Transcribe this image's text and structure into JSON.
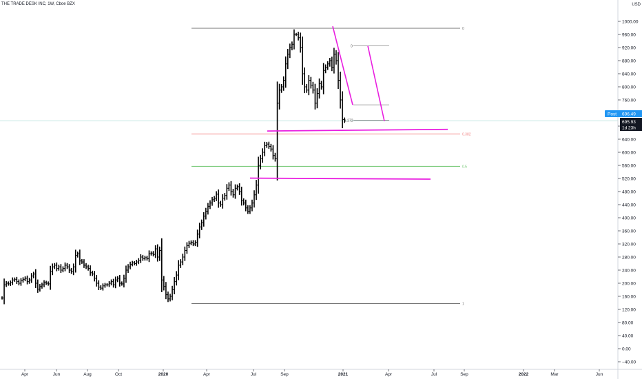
{
  "header": {
    "title": "THE TRADE DESK INC, 1W, Cboe BZX",
    "currency": "USD"
  },
  "price_badges": {
    "post_label": "Post",
    "post_value": "696.49",
    "last_value": "695.93",
    "countdown": "1d 23h"
  },
  "colors": {
    "accent_blue": "#2196f3",
    "trendline_magenta": "#e91ee0",
    "fib_red": "#f28a8a",
    "fib_green": "#6cc46c",
    "bars": "#000000"
  },
  "chart_data": {
    "type": "ohlc",
    "ylim": [
      -40,
      1000
    ],
    "y_ticks": [
      "−40.00",
      "0.00",
      "40.00",
      "80.00",
      "120.00",
      "160.00",
      "200.00",
      "240.00",
      "280.00",
      "320.00",
      "360.00",
      "400.00",
      "440.00",
      "480.00",
      "520.00",
      "560.00",
      "600.00",
      "640.00",
      "680.00",
      "720.00",
      "760.00",
      "800.00",
      "840.00",
      "880.00",
      "920.00",
      "960.00",
      "1000.00"
    ],
    "x_ticks": [
      "Apr",
      "Jun",
      "Aug",
      "Oct",
      "2020",
      "Apr",
      "Jul",
      "Sep",
      "2021",
      "Apr",
      "Jul",
      "Sep",
      "2022",
      "Mar",
      "Jun"
    ],
    "closes": [
      155,
      195,
      200,
      198,
      202,
      210,
      212,
      205,
      200,
      208,
      212,
      215,
      205,
      210,
      222,
      228,
      200,
      182,
      190,
      195,
      202,
      200,
      198,
      235,
      250,
      255,
      245,
      250,
      240,
      245,
      255,
      250,
      240,
      235,
      250,
      285,
      290,
      268,
      265,
      255,
      250,
      245,
      232,
      228,
      215,
      200,
      188,
      185,
      192,
      195,
      195,
      200,
      205,
      195,
      210,
      215,
      200,
      198,
      215,
      240,
      250,
      258,
      262,
      260,
      265,
      270,
      280,
      275,
      278,
      275,
      290,
      292,
      288,
      305,
      280,
      300,
      210,
      190,
      165,
      152,
      160,
      180,
      205,
      225,
      255,
      265,
      280,
      300,
      315,
      322,
      325,
      320,
      325,
      350,
      372,
      385,
      405,
      420,
      435,
      445,
      455,
      460,
      472,
      445,
      440,
      460,
      468,
      490,
      500,
      480,
      470,
      490,
      495,
      480,
      452,
      445,
      430,
      420,
      430,
      445,
      470,
      500,
      560,
      580,
      600,
      620,
      625,
      618,
      610,
      590,
      580,
      750,
      790,
      800,
      820,
      870,
      900,
      920,
      930,
      960,
      960,
      950,
      920,
      840,
      800,
      790,
      820,
      805,
      790,
      750,
      780,
      810,
      800,
      850,
      860,
      870,
      880,
      860,
      900,
      880,
      820,
      760,
      700,
      696
    ],
    "annotations": {
      "fib_levels": [
        {
          "label": "0",
          "value": 979
        },
        {
          "label": "0.382",
          "value": 656
        },
        {
          "label": "0.5",
          "value": 557
        },
        {
          "label": "1",
          "value": 138
        }
      ],
      "small_fib_levels": [
        {
          "label": "0",
          "value": 925
        },
        {
          "label": "1.272",
          "value": 698
        }
      ],
      "last_price_line": 696.49
    }
  }
}
